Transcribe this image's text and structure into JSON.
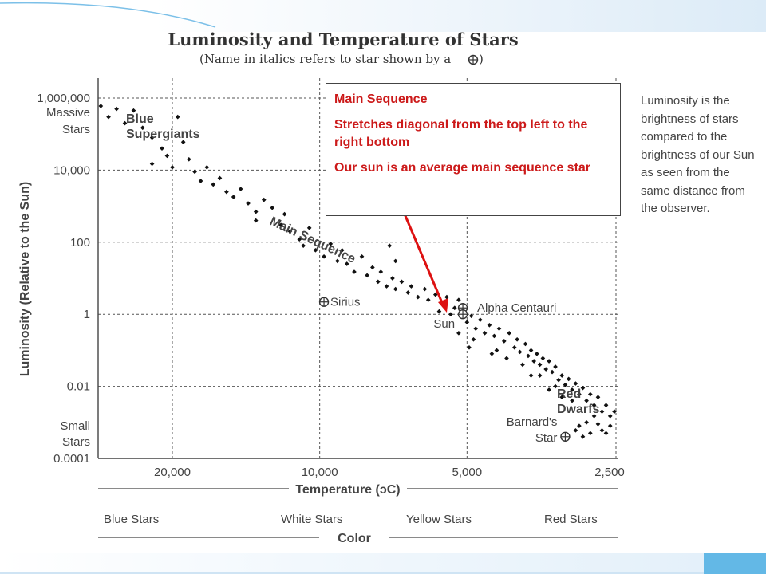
{
  "chart_data": {
    "type": "scatter",
    "title": "Luminosity and Temperature of Stars",
    "subtitle": "(Name in italics refers to star shown by a",
    "subtitle_end": ")",
    "xlabel": "Temperature (ᴐC)",
    "ylabel": "Luminosity (Relative to the Sun)",
    "x_scale": "log-reversed",
    "y_scale": "log",
    "xlim": [
      32000,
      2300
    ],
    "ylim": [
      0.0001,
      1000000
    ],
    "x_ticks": [
      {
        "value": 20000,
        "label": "20,000"
      },
      {
        "value": 10000,
        "label": "10,000"
      },
      {
        "value": 5000,
        "label": "5,000"
      },
      {
        "value": 2500,
        "label": "2,500"
      }
    ],
    "y_ticks": [
      {
        "value": 1000000,
        "label": "1,000,000"
      },
      {
        "value": 10000,
        "label": "10,000"
      },
      {
        "value": 100,
        "label": "100"
      },
      {
        "value": 1,
        "label": "1"
      },
      {
        "value": 0.01,
        "label": "0.01"
      },
      {
        "value": 0.0001,
        "label": "0.0001"
      }
    ],
    "y_side_labels": {
      "top_line1": "Massive",
      "top_line2": "Stars",
      "bottom_line1": "Small",
      "bottom_line2": "Stars"
    },
    "color_axis": {
      "title": "Color",
      "labels": [
        "Blue Stars",
        "White Stars",
        "Yellow Stars",
        "Red Stars"
      ]
    },
    "grid": true,
    "region_labels": {
      "blue_supergiants_1": "Blue",
      "blue_supergiants_2": "Supergiants",
      "main_sequence": "Main Sequence",
      "red_dwarfs_1": "Red",
      "red_dwarfs_2": "Dwarfs"
    },
    "named_stars": [
      {
        "name": "Sirius",
        "temperature": 9800,
        "luminosity": 2.2
      },
      {
        "name": "Alpha Centauri",
        "temperature": 5100,
        "luminosity": 1.5
      },
      {
        "name": "Sun",
        "temperature": 5100,
        "luminosity": 1
      },
      {
        "name": "Barnard's Star",
        "temperature": 3150,
        "luminosity": 0.0004
      }
    ],
    "points": [
      [
        28000,
        600000
      ],
      [
        26000,
        500000
      ],
      [
        24000,
        450000
      ],
      [
        25000,
        200000
      ],
      [
        23000,
        150000
      ],
      [
        27000,
        300000
      ],
      [
        22000,
        80000
      ],
      [
        21000,
        40000
      ],
      [
        20500,
        25000
      ],
      [
        22000,
        15000
      ],
      [
        19000,
        60000
      ],
      [
        19500,
        300000
      ],
      [
        20000,
        12000
      ],
      [
        18500,
        20000
      ],
      [
        18000,
        9000
      ],
      [
        17500,
        5000
      ],
      [
        17000,
        12000
      ],
      [
        16500,
        4000
      ],
      [
        16000,
        6000
      ],
      [
        15500,
        2500
      ],
      [
        15000,
        1800
      ],
      [
        14500,
        3000
      ],
      [
        14000,
        1200
      ],
      [
        13500,
        700
      ],
      [
        13000,
        1500
      ],
      [
        13500,
        400
      ],
      [
        12500,
        900
      ],
      [
        12000,
        300
      ],
      [
        11800,
        600
      ],
      [
        11500,
        200
      ],
      [
        11000,
        120
      ],
      [
        10800,
        80
      ],
      [
        10500,
        250
      ],
      [
        10200,
        60
      ],
      [
        9800,
        40
      ],
      [
        9500,
        90
      ],
      [
        9200,
        30
      ],
      [
        9000,
        60
      ],
      [
        8800,
        25
      ],
      [
        8500,
        15
      ],
      [
        8200,
        40
      ],
      [
        8000,
        12
      ],
      [
        7800,
        20
      ],
      [
        7600,
        8
      ],
      [
        7500,
        15
      ],
      [
        7300,
        6
      ],
      [
        7100,
        10
      ],
      [
        7000,
        5
      ],
      [
        6800,
        8
      ],
      [
        6600,
        4
      ],
      [
        6500,
        6
      ],
      [
        6300,
        3
      ],
      [
        6100,
        5
      ],
      [
        6000,
        2.5
      ],
      [
        5800,
        3.5
      ],
      [
        5600,
        2
      ],
      [
        5500,
        3
      ],
      [
        5300,
        1.5
      ],
      [
        5200,
        2.5
      ],
      [
        7200,
        80
      ],
      [
        7000,
        30
      ],
      [
        5700,
        1.2
      ],
      [
        5400,
        1
      ],
      [
        5000,
        0.6
      ],
      [
        4900,
        0.9
      ],
      [
        4800,
        0.4
      ],
      [
        4700,
        0.7
      ],
      [
        4600,
        0.3
      ],
      [
        4500,
        0.5
      ],
      [
        4400,
        0.25
      ],
      [
        4300,
        0.4
      ],
      [
        4200,
        0.18
      ],
      [
        4100,
        0.3
      ],
      [
        4000,
        0.12
      ],
      [
        3950,
        0.2
      ],
      [
        3900,
        0.09
      ],
      [
        3800,
        0.15
      ],
      [
        3750,
        0.07
      ],
      [
        3700,
        0.1
      ],
      [
        3650,
        0.05
      ],
      [
        3600,
        0.08
      ],
      [
        3550,
        0.04
      ],
      [
        3500,
        0.06
      ],
      [
        3450,
        0.03
      ],
      [
        3400,
        0.05
      ],
      [
        3350,
        0.025
      ],
      [
        3300,
        0.035
      ],
      [
        3250,
        0.015
      ],
      [
        3200,
        0.02
      ],
      [
        3150,
        0.011
      ],
      [
        3100,
        0.016
      ],
      [
        3050,
        0.008
      ],
      [
        3000,
        0.012
      ],
      [
        2950,
        0.006
      ],
      [
        2900,
        0.009
      ],
      [
        2850,
        0.004
      ],
      [
        2800,
        0.006
      ],
      [
        2750,
        0.003
      ],
      [
        2700,
        0.005
      ],
      [
        2650,
        0.002
      ],
      [
        2600,
        0.003
      ],
      [
        2550,
        0.0015
      ],
      [
        2500,
        0.002
      ],
      [
        2750,
        0.0015
      ],
      [
        2850,
        0.001
      ],
      [
        2950,
        0.0008
      ],
      [
        2700,
        0.0009
      ],
      [
        2650,
        0.0006
      ],
      [
        2600,
        0.0005
      ],
      [
        2800,
        0.0005
      ],
      [
        2900,
        0.0004
      ],
      [
        2550,
        0.0008
      ],
      [
        3000,
        0.0006
      ],
      [
        5200,
        0.3
      ],
      [
        4850,
        0.2
      ],
      [
        4350,
        0.1
      ],
      [
        4150,
        0.06
      ],
      [
        3850,
        0.04
      ],
      [
        3550,
        0.02
      ],
      [
        3300,
        0.01
      ],
      [
        3050,
        0.004
      ],
      [
        4950,
        0.12
      ],
      [
        4450,
        0.08
      ],
      [
        3700,
        0.02
      ],
      [
        3400,
        0.008
      ],
      [
        3200,
        0.005
      ],
      [
        2450,
        0.0012
      ]
    ]
  },
  "callout": {
    "line1": "Main Sequence",
    "line2": "Stretches diagonal from the top left to the right bottom",
    "line3": "Our sun is an average main sequence star"
  },
  "description": "Luminosity is the brightness of stars compared to the brightness of our Sun as seen from the same distance from the observer.",
  "colors": {
    "dots": "#111111",
    "grid": "#555555",
    "callout_text": "#cc1a1a",
    "arrow": "#dd1111",
    "accent": "#63b8e6"
  }
}
